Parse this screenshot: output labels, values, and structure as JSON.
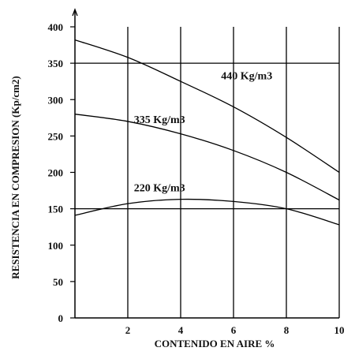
{
  "chart_data": {
    "type": "line",
    "xlabel": "CONTENIDO EN AIRE %",
    "ylabel": "RESISTENCIA EN COMPRESION (Kp/cm2)",
    "xlim": [
      0,
      10
    ],
    "ylim": [
      0,
      400
    ],
    "x_ticks": [
      "2",
      "4",
      "6",
      "8",
      "10"
    ],
    "y_ticks": [
      "0",
      "50",
      "100",
      "150",
      "200",
      "250",
      "300",
      "350",
      "400"
    ],
    "x_tick_values": [
      2,
      4,
      6,
      8,
      10
    ],
    "y_tick_values": [
      0,
      50,
      100,
      150,
      200,
      250,
      300,
      350,
      400
    ],
    "grid": "vertical lines at x ticks; horizontal lines at 150 and 350",
    "series": [
      {
        "name": "440 Kg/m3",
        "x": [
          0,
          2,
          4,
          6,
          8,
          10
        ],
        "y": [
          382,
          358,
          325,
          290,
          248,
          200
        ]
      },
      {
        "name": "335 Kg/m3",
        "x": [
          0,
          2,
          4,
          6,
          8,
          10
        ],
        "y": [
          280,
          270,
          253,
          230,
          200,
          162
        ]
      },
      {
        "name": "220 Kg/m3",
        "x": [
          0,
          2,
          4,
          6,
          8,
          10
        ],
        "y": [
          141,
          157,
          163,
          160,
          150,
          128
        ]
      }
    ]
  }
}
